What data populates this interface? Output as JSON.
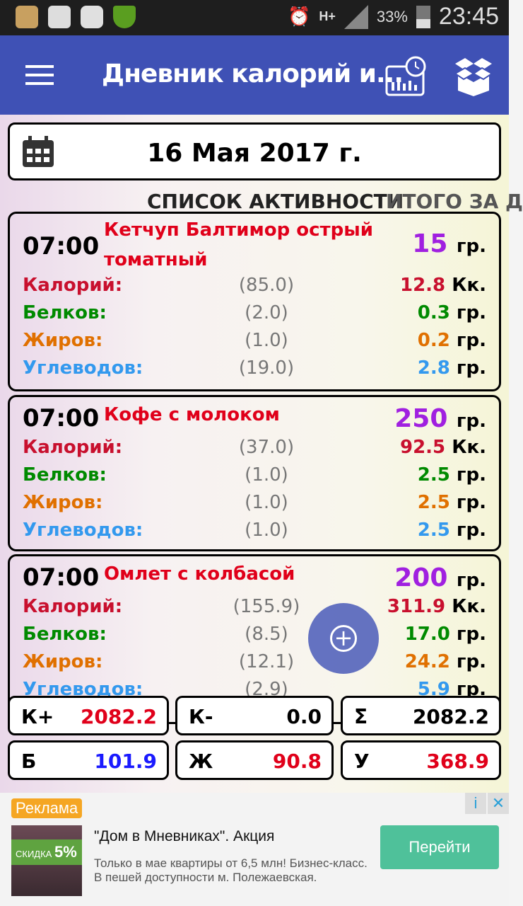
{
  "status_bar": {
    "time": "23:45",
    "battery": "33%",
    "network": "H+"
  },
  "app_bar": {
    "title": "Дневник калорий и...",
    "icons": [
      "menu-icon",
      "stats-clock-icon",
      "box-icon"
    ]
  },
  "date": "16 Мая 2017 г.",
  "tabs": [
    {
      "label": "СПИСОК АКТИВНОСТИ",
      "active": true
    },
    {
      "label": "ИТОГО ЗА Д"
    }
  ],
  "labels": {
    "cal": "Калорий:",
    "prot": "Белков:",
    "fat": "Жиров:",
    "carb": "Углеводов:",
    "unit_g": "гр.",
    "unit_k": "Кк."
  },
  "entries": [
    {
      "time": "07:00",
      "name": "Кетчуп Балтимор острый томатный",
      "qty": "15",
      "cal": [
        "(85.0)",
        "12.8"
      ],
      "prot": [
        "(2.0)",
        "0.3"
      ],
      "fat": [
        "(1.0)",
        "0.2"
      ],
      "carb": [
        "(19.0)",
        "2.8"
      ]
    },
    {
      "time": "07:00",
      "name": "Кофе с молоком",
      "qty": "250",
      "cal": [
        "(37.0)",
        "92.5"
      ],
      "prot": [
        "(1.0)",
        "2.5"
      ],
      "fat": [
        "(1.0)",
        "2.5"
      ],
      "carb": [
        "(1.0)",
        "2.5"
      ]
    },
    {
      "time": "07:00",
      "name": "Омлет с колбасой",
      "qty": "200",
      "cal": [
        "(155.9)",
        "311.9"
      ],
      "prot": [
        "(8.5)",
        "17.0"
      ],
      "fat": [
        "(12.1)",
        "24.2"
      ],
      "carb": [
        "(2.9)",
        "5.9"
      ]
    }
  ],
  "summary": [
    {
      "key": "К+",
      "value": "2082.2",
      "color": "#e0001a"
    },
    {
      "key": "К-",
      "value": "0.0",
      "color": "#000000"
    },
    {
      "key": "Σ",
      "value": "2082.2",
      "color": "#000000"
    },
    {
      "key": "Б",
      "value": "101.9",
      "color": "#1a1aff"
    },
    {
      "key": "Ж",
      "value": "90.8",
      "color": "#e0001a"
    },
    {
      "key": "У",
      "value": "368.9",
      "color": "#e0001a"
    }
  ],
  "ad": {
    "label": "Реклама",
    "image_text": "СКИДКА",
    "image_discount": "5%",
    "title": "\"Дом в Мневниках\". Акция",
    "description": "Только в мае квартиры от 6,5 млн! Бизнес-класс. В пешей доступности м. Полежаевская.",
    "button": "Перейти",
    "info": "i",
    "close": "✕"
  },
  "colors": {
    "primary": "#3f51b5",
    "cal": "#c8102e",
    "prot": "#008a00",
    "fat": "#e07000",
    "carb": "#3399ee",
    "qty": "#a020e0"
  }
}
